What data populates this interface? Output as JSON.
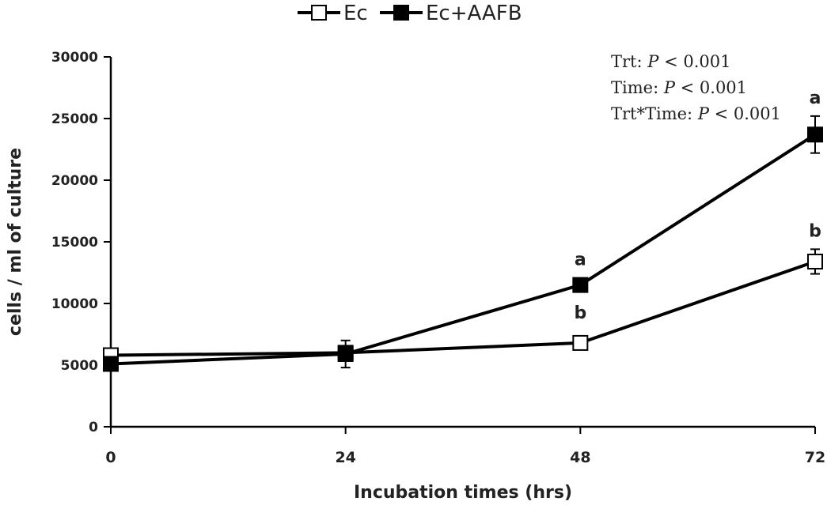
{
  "chart_data": {
    "type": "line",
    "x": [
      0,
      24,
      48,
      72
    ],
    "series": [
      {
        "name": "Ec",
        "marker": "open-square",
        "values": [
          5800,
          6000,
          6800,
          13400
        ],
        "errors": [
          null,
          null,
          null,
          1000
        ],
        "letters": [
          "",
          "",
          "b",
          "b"
        ]
      },
      {
        "name": "Ec+AAFB",
        "marker": "filled-square",
        "values": [
          5100,
          5900,
          11500,
          23700
        ],
        "errors": [
          null,
          1100,
          null,
          1500
        ],
        "letters": [
          "",
          "",
          "a",
          "a"
        ]
      }
    ],
    "xlabel": "Incubation times (hrs)",
    "ylabel": "cells / ml of culture",
    "xticks": [
      "0",
      "24",
      "48",
      "72"
    ],
    "yticks": [
      "0",
      "5000",
      "10000",
      "15000",
      "20000",
      "25000",
      "30000"
    ],
    "xlim": [
      0,
      72
    ],
    "ylim": [
      0,
      30000
    ],
    "grid": false,
    "legend_position": "top-center",
    "annotations": [
      {
        "label": "Trt: ",
        "p": "P",
        "rest": " < 0.001"
      },
      {
        "label": "Time: ",
        "p": "P",
        "rest": " < 0.001"
      },
      {
        "label": "Trt*Time: ",
        "p": "P",
        "rest": " < 0.001"
      }
    ],
    "colors": {
      "line": "#000000",
      "text": "#222222"
    }
  }
}
